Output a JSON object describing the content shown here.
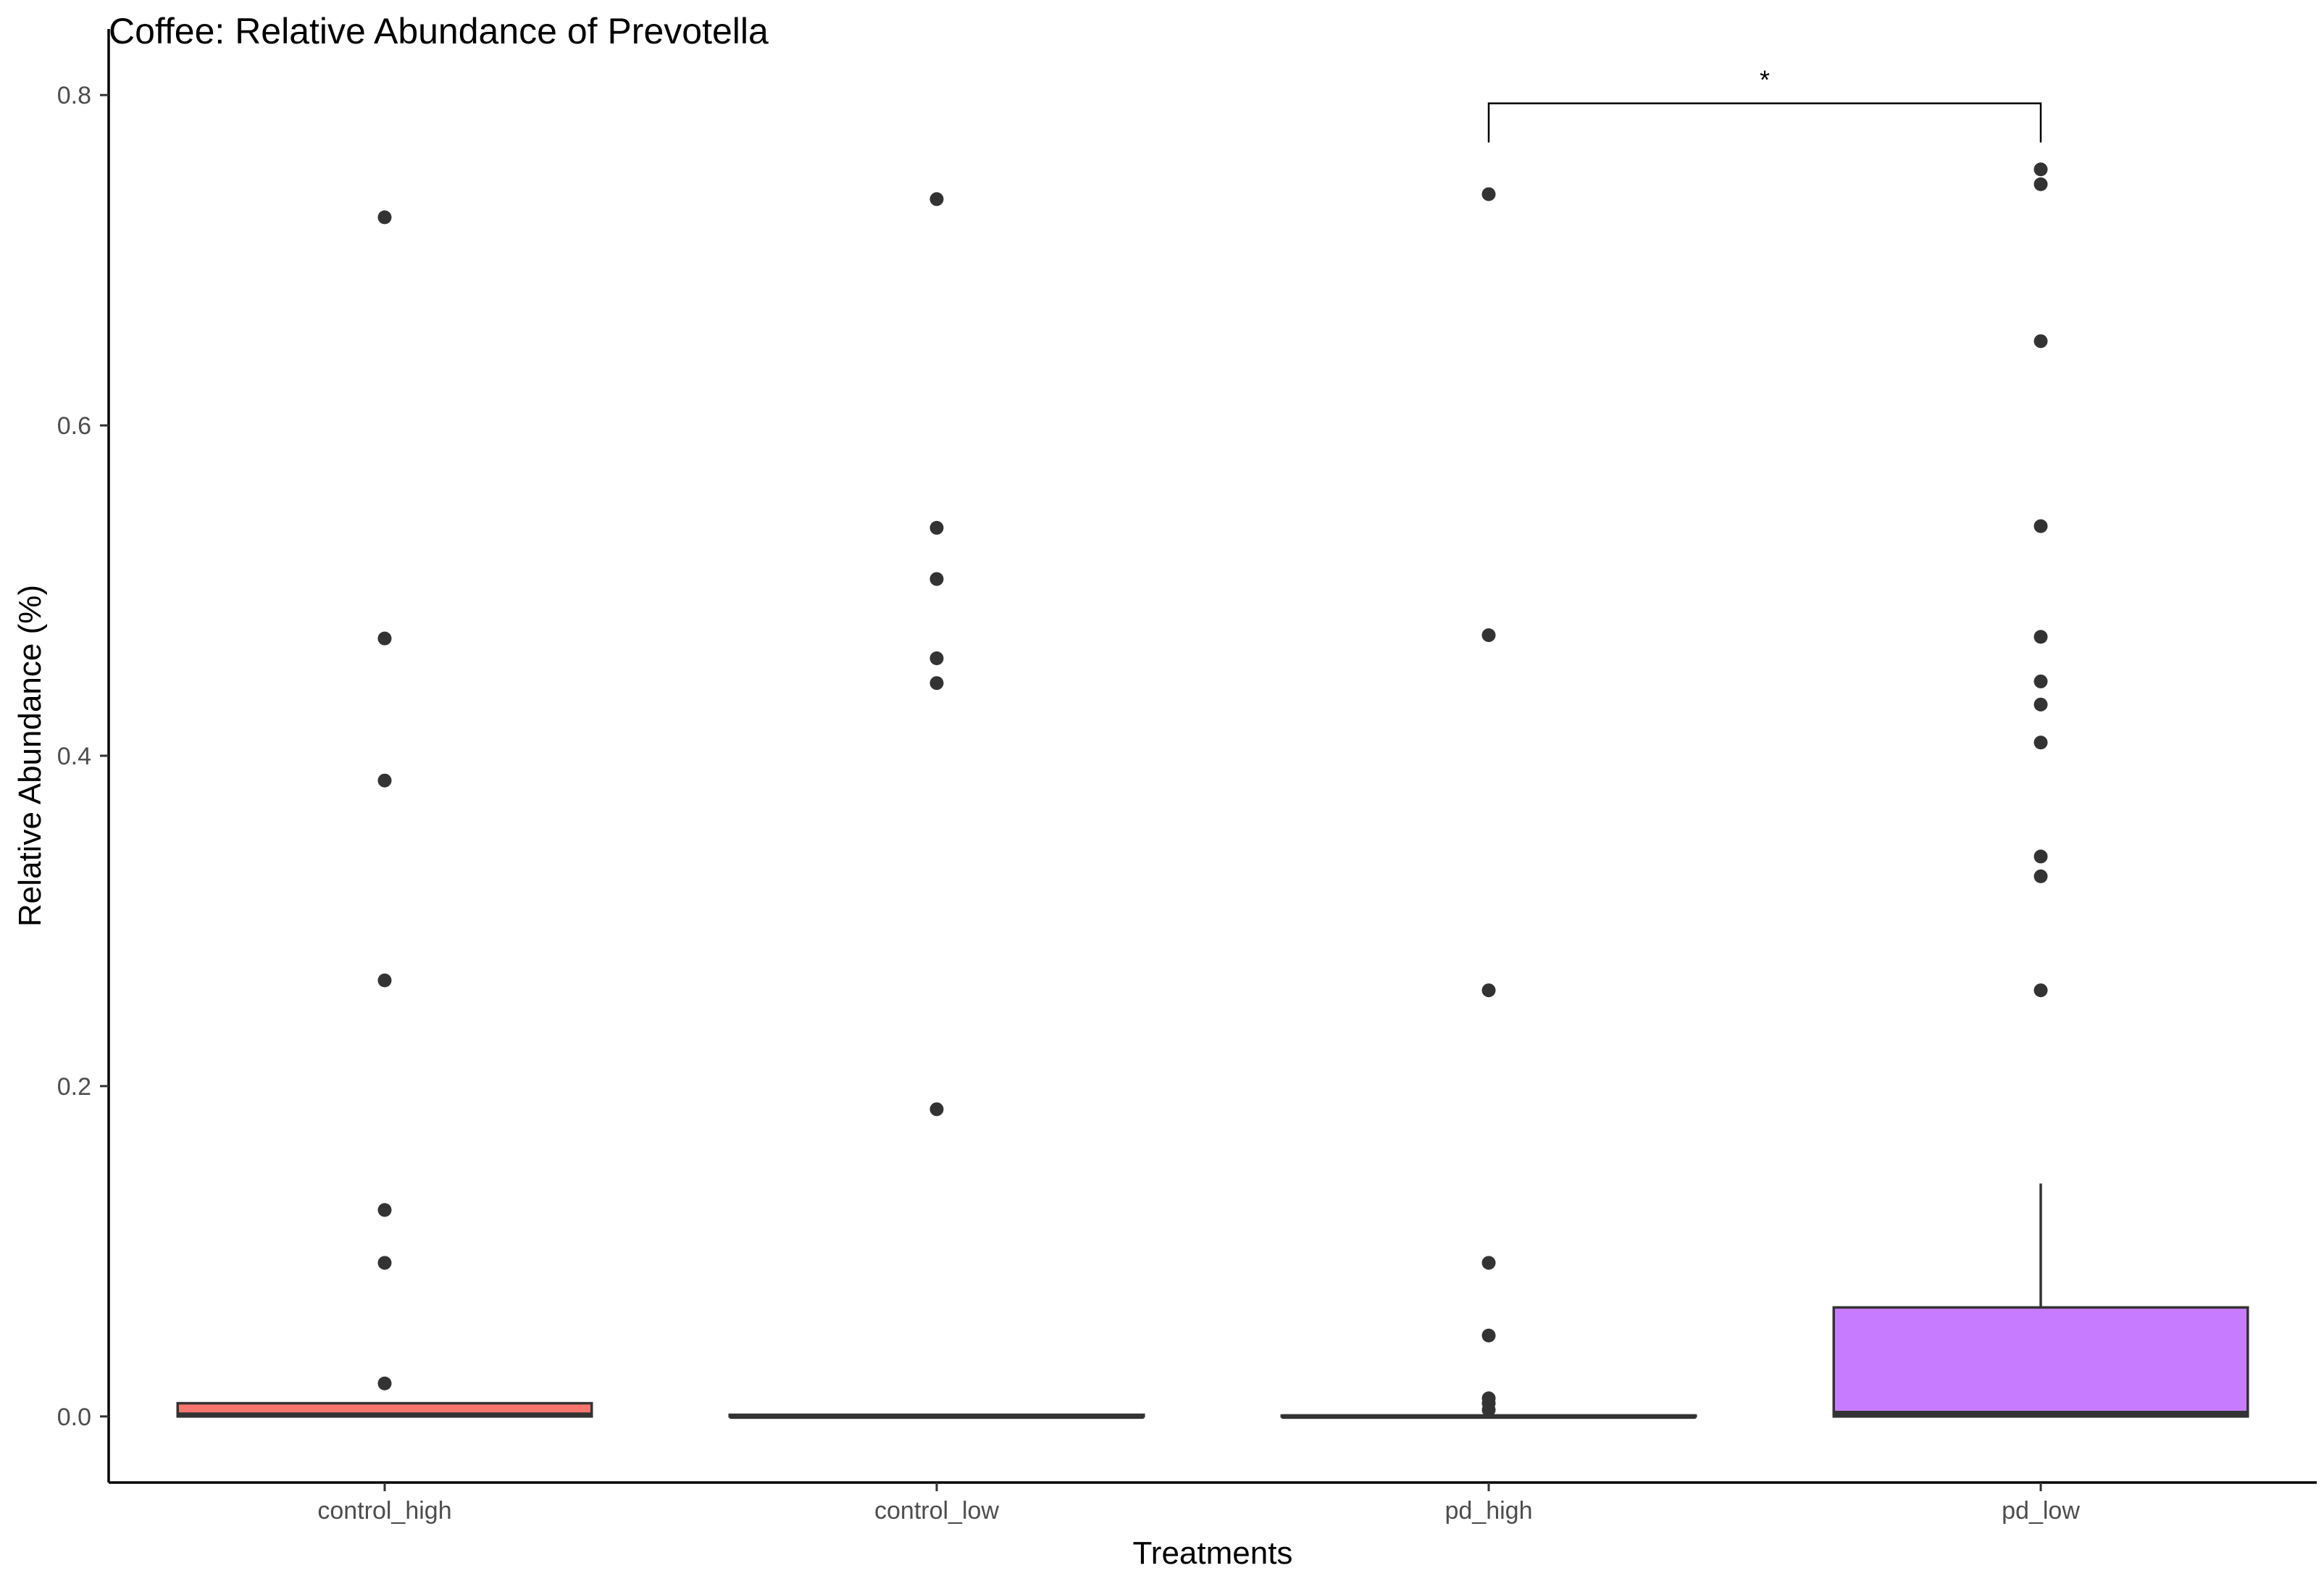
{
  "chart_data": {
    "type": "box",
    "title": "Coffee: Relative Abundance of Prevotella",
    "xlabel": "Treatments",
    "ylabel": "Relative Abundance (%)",
    "ylim": [
      -0.04,
      0.84
    ],
    "y_ticks": [
      0.0,
      0.2,
      0.4,
      0.6,
      0.8
    ],
    "y_tick_labels": [
      "0.0",
      "0.2",
      "0.4",
      "0.6",
      "0.8"
    ],
    "grid": false,
    "legend": "none",
    "categories": [
      "control_high",
      "control_low",
      "pd_high",
      "pd_low"
    ],
    "boxes": [
      {
        "category": "control_high",
        "color": "#F8766D",
        "lower_whisker": 0.0,
        "q1": 0.0,
        "median": 0.001,
        "q3": 0.008,
        "upper_whisker": 0.008,
        "outliers": [
          0.726,
          0.471,
          0.385,
          0.264,
          0.125,
          0.093,
          0.02
        ]
      },
      {
        "category": "control_low",
        "color": "#7CAE00",
        "lower_whisker": 0.0,
        "q1": 0.0,
        "median": 0.0,
        "q3": 0.001,
        "upper_whisker": 0.001,
        "outliers": [
          0.737,
          0.538,
          0.507,
          0.459,
          0.444,
          0.186
        ]
      },
      {
        "category": "pd_high",
        "color": "#00BFC4",
        "lower_whisker": 0.0,
        "q1": 0.0,
        "median": 0.0,
        "q3": 0.0005,
        "upper_whisker": 0.0005,
        "outliers": [
          0.74,
          0.473,
          0.258,
          0.093,
          0.049,
          0.011,
          0.008,
          0.004
        ]
      },
      {
        "category": "pd_low",
        "color": "#C77CFF",
        "lower_whisker": 0.0,
        "q1": 0.0,
        "median": 0.002,
        "q3": 0.066,
        "upper_whisker": 0.141,
        "outliers": [
          0.755,
          0.746,
          0.651,
          0.539,
          0.472,
          0.445,
          0.431,
          0.408,
          0.339,
          0.327,
          0.258
        ]
      }
    ],
    "annotations": [
      {
        "type": "significance_bracket",
        "from": "pd_high",
        "to": "pd_low",
        "y": 0.795,
        "label": "*"
      }
    ]
  }
}
